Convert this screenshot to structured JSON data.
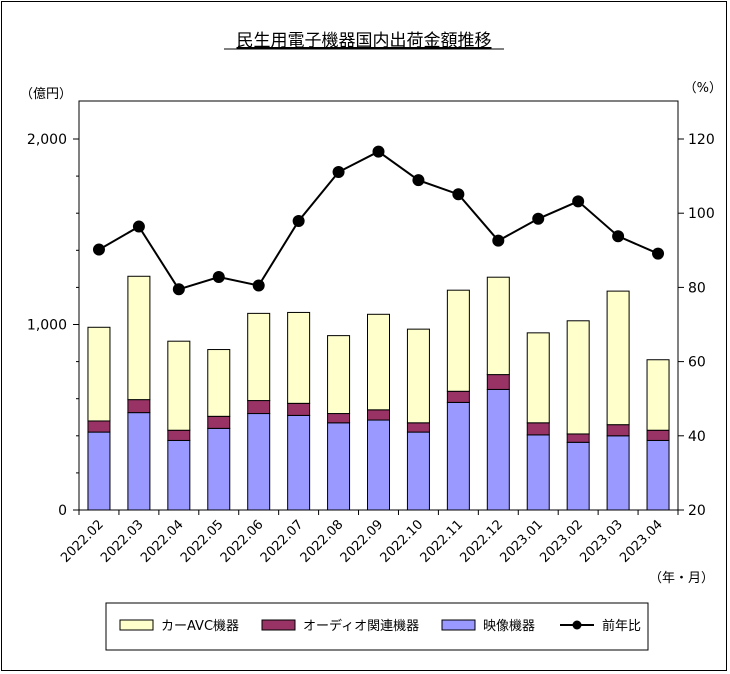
{
  "chart_data": {
    "type": "bar+line",
    "title": "民生用電子機器国内出荷金額推移",
    "y_left_unit": "（億円）",
    "y_right_unit": "（%）",
    "x_unit": "（年・月）",
    "ylim_left": [
      0,
      2000
    ],
    "yticks_left": [
      "0",
      "1,000",
      "2,000"
    ],
    "ylim_right": [
      20,
      120
    ],
    "yticks_right": [
      "20",
      "40",
      "60",
      "80",
      "100",
      "120"
    ],
    "stacked": true,
    "grid": false,
    "legend_position": "bottom",
    "categories": [
      "2022.02",
      "2022.03",
      "2022.04",
      "2022.05",
      "2022.06",
      "2022.07",
      "2022.08",
      "2022.09",
      "2022.10",
      "2022.11",
      "2022.12",
      "2023.01",
      "2023.02",
      "2023.03",
      "2023.04"
    ],
    "series": [
      {
        "name": "映像機器",
        "type": "bar",
        "axis": "left",
        "color": "#9999ff",
        "values": [
          420,
          525,
          375,
          440,
          520,
          510,
          470,
          485,
          420,
          580,
          650,
          405,
          365,
          400,
          375
        ]
      },
      {
        "name": "オーディオ関連機器",
        "type": "bar",
        "axis": "left",
        "color": "#993366",
        "values": [
          60,
          70,
          55,
          65,
          70,
          65,
          50,
          55,
          50,
          60,
          80,
          65,
          45,
          60,
          55
        ]
      },
      {
        "name": "カーAVC機器",
        "type": "bar",
        "axis": "left",
        "color": "#ffffcc",
        "values": [
          505,
          665,
          480,
          360,
          470,
          490,
          420,
          515,
          505,
          545,
          525,
          485,
          610,
          720,
          380
        ]
      },
      {
        "name": "前年比",
        "type": "line",
        "axis": "right",
        "color": "#000000",
        "values": [
          90.2,
          96.4,
          79.5,
          82.8,
          80.5,
          97.9,
          111.1,
          116.6,
          108.9,
          105.1,
          92.6,
          98.5,
          103.2,
          93.8,
          89.1
        ]
      }
    ]
  },
  "legend": {
    "items": [
      {
        "label": "カーAVC機器",
        "swatch": "#ffffcc"
      },
      {
        "label": "オーディオ関連機器",
        "swatch": "#993366"
      },
      {
        "label": "映像機器",
        "swatch": "#9999ff"
      },
      {
        "label": "前年比",
        "swatch": "#000000"
      }
    ]
  }
}
